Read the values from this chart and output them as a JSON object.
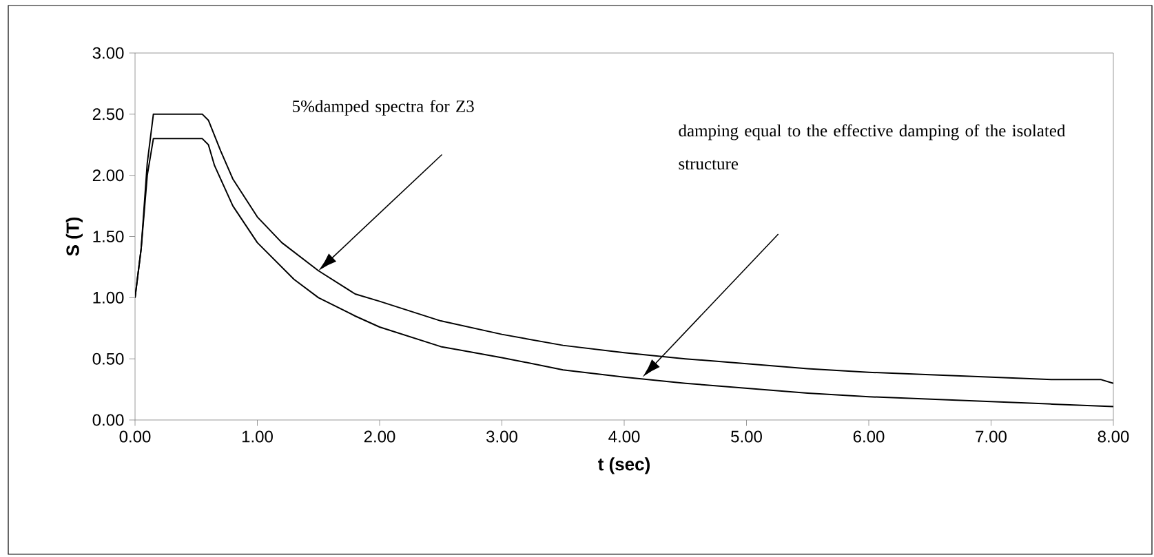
{
  "chart_data": {
    "type": "line",
    "xlabel": "t (sec)",
    "ylabel": "S (T)",
    "xlim": [
      0,
      8
    ],
    "ylim": [
      0,
      3
    ],
    "xticks": [
      {
        "value": 0,
        "label": "0.00"
      },
      {
        "value": 1,
        "label": "1.00"
      },
      {
        "value": 2,
        "label": "2.00"
      },
      {
        "value": 3,
        "label": "3.00"
      },
      {
        "value": 4,
        "label": "4.00"
      },
      {
        "value": 5,
        "label": "5.00"
      },
      {
        "value": 6,
        "label": "6.00"
      },
      {
        "value": 7,
        "label": "7.00"
      },
      {
        "value": 8,
        "label": "8.00"
      }
    ],
    "yticks": [
      {
        "value": 0,
        "label": "0.00"
      },
      {
        "value": 0.5,
        "label": "0.50"
      },
      {
        "value": 1,
        "label": "1.00"
      },
      {
        "value": 1.5,
        "label": "1.50"
      },
      {
        "value": 2,
        "label": "2.00"
      },
      {
        "value": 2.5,
        "label": "2.50"
      },
      {
        "value": 3,
        "label": "3.00"
      }
    ],
    "grid": false,
    "marker": "none",
    "line_style": "solid",
    "series": [
      {
        "color": "#000000",
        "x": [
          0,
          0.05,
          0.1,
          0.15,
          0.55,
          0.6,
          0.7,
          0.8,
          1.0,
          1.2,
          1.5,
          1.8,
          2.0,
          2.5,
          3.0,
          3.5,
          4.0,
          4.5,
          5.0,
          5.5,
          6.0,
          6.5,
          7.0,
          7.5,
          7.9,
          8.0
        ],
        "values": [
          1.0,
          1.4,
          2.1,
          2.5,
          2.5,
          2.45,
          2.2,
          1.97,
          1.66,
          1.45,
          1.22,
          1.03,
          0.97,
          0.81,
          0.7,
          0.61,
          0.55,
          0.5,
          0.46,
          0.42,
          0.39,
          0.37,
          0.35,
          0.33,
          0.33,
          0.3
        ]
      },
      {
        "color": "#000000",
        "x": [
          0,
          0.05,
          0.1,
          0.15,
          0.55,
          0.6,
          0.65,
          0.8,
          1.0,
          1.3,
          1.5,
          1.8,
          2.0,
          2.5,
          3.0,
          3.5,
          4.0,
          4.5,
          5.0,
          5.5,
          6.0,
          6.5,
          7.0,
          7.5,
          8.0
        ],
        "values": [
          1.0,
          1.4,
          2.0,
          2.3,
          2.3,
          2.25,
          2.08,
          1.75,
          1.45,
          1.15,
          1.0,
          0.85,
          0.76,
          0.6,
          0.51,
          0.41,
          0.35,
          0.3,
          0.26,
          0.22,
          0.19,
          0.17,
          0.15,
          0.13,
          0.11
        ]
      }
    ],
    "annotations": [
      "5%damped spectra for Z3",
      "damping equal to the effective damping of the isolated structure"
    ]
  }
}
